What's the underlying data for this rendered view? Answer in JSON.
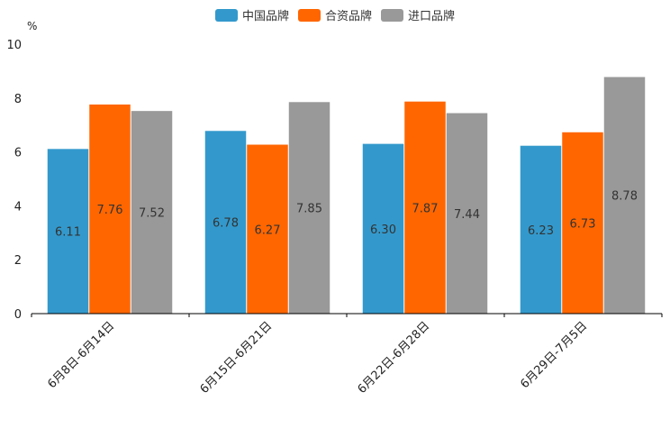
{
  "chart_data": {
    "type": "bar",
    "title": "",
    "ylabel": "%",
    "xlabel": "",
    "ylim": [
      0,
      10
    ],
    "yticks": [
      0,
      2,
      4,
      6,
      8,
      10
    ],
    "categories": [
      "6月8日-6月14日",
      "6月15日-6月21日",
      "6月22日-6月28日",
      "6月29日-7月5日"
    ],
    "series": [
      {
        "name": "中国品牌",
        "color": "#3399cc",
        "values": [
          6.11,
          6.78,
          6.3,
          6.23
        ],
        "labels": [
          "6.11",
          "6.78",
          "6.30",
          "6.23"
        ]
      },
      {
        "name": "合资品牌",
        "color": "#ff6600",
        "values": [
          7.76,
          6.27,
          7.87,
          6.73
        ],
        "labels": [
          "7.76",
          "6.27",
          "7.87",
          "6.73"
        ]
      },
      {
        "name": "进口品牌",
        "color": "#999999",
        "values": [
          7.52,
          7.85,
          7.44,
          8.78
        ],
        "labels": [
          "7.52",
          "7.85",
          "7.44",
          "8.78"
        ]
      }
    ],
    "legend_position": "top-center"
  }
}
